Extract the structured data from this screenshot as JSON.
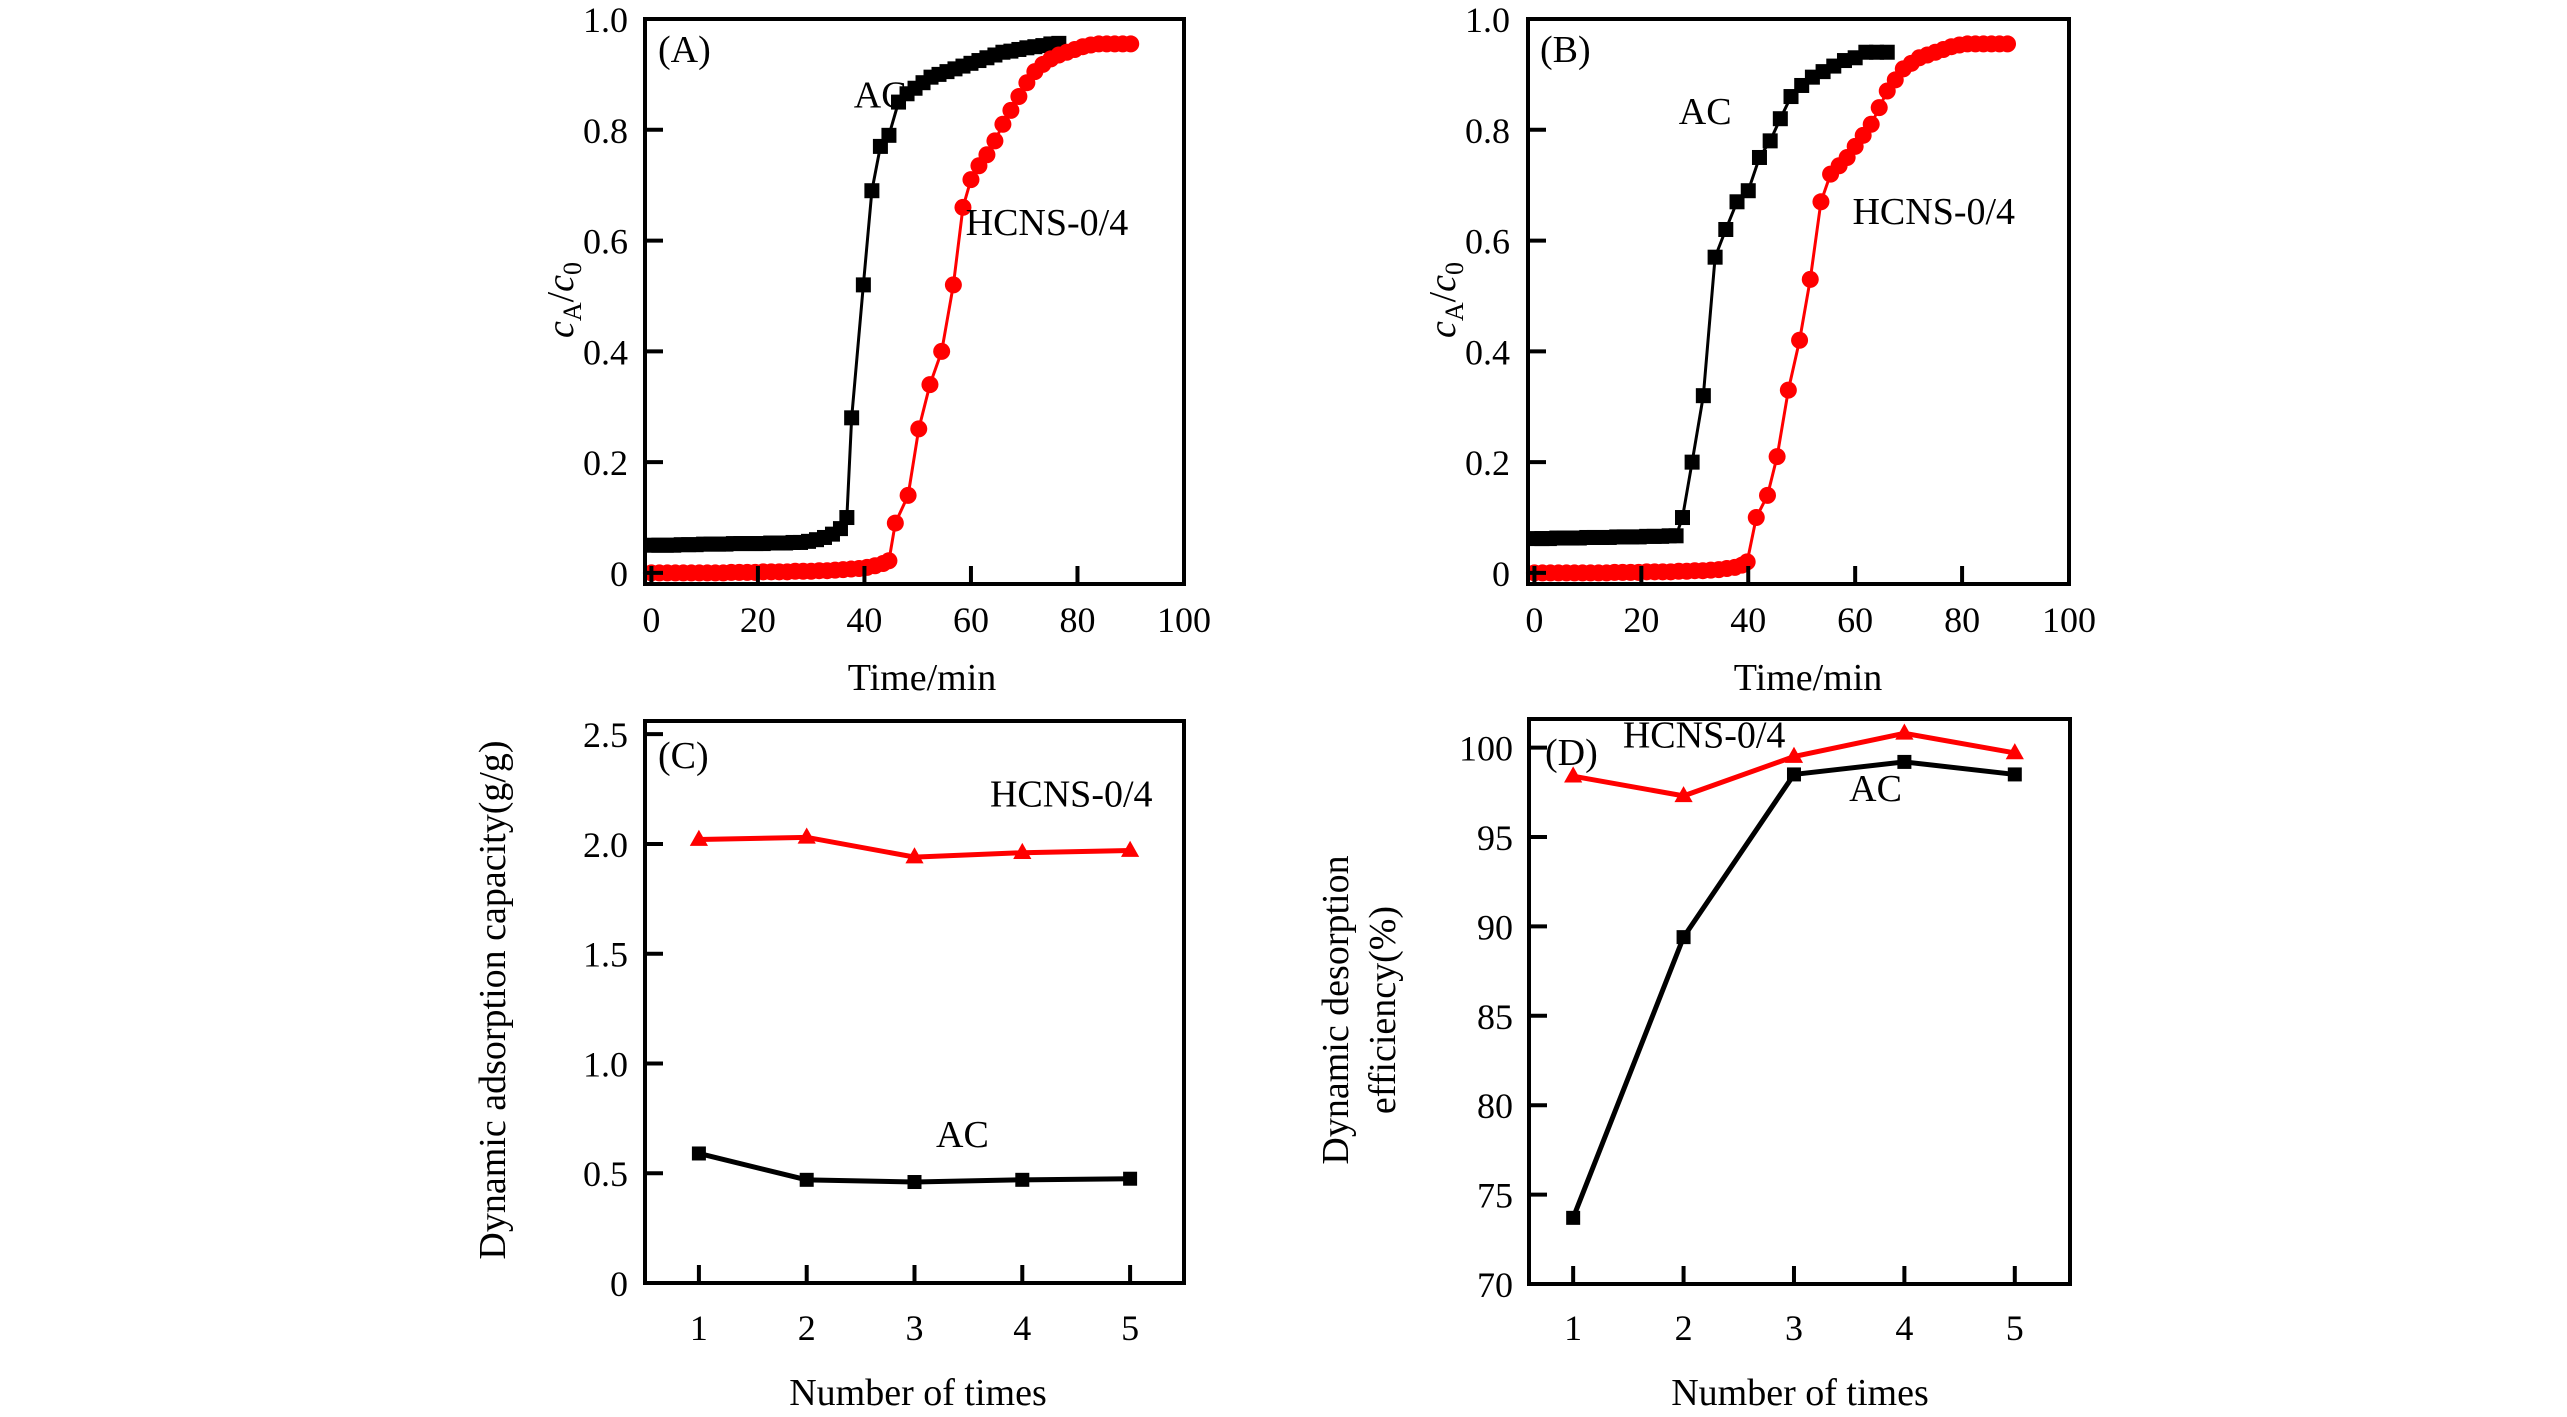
{
  "figure": {
    "colors": {
      "AC": "#000000",
      "HCNS-0/4": "#ff0000",
      "axis": "#000000"
    }
  },
  "chart_data": [
    {
      "id": "A",
      "panel_label": "(A)",
      "type": "line",
      "xlabel": "Time/min",
      "ylabel_main": "c",
      "ylabel_sub1": "A",
      "ylabel_slash": "/",
      "ylabel_main2": "c",
      "ylabel_sub2": "0",
      "xlim": [
        -1.2,
        100
      ],
      "ylim": [
        -0.02,
        1.0
      ],
      "xticks": [
        0,
        20,
        40,
        60,
        80,
        100
      ],
      "xtick_labels": [
        "0",
        "20",
        "40",
        "60",
        "80",
        "100"
      ],
      "yticks": [
        0,
        0.2,
        0.4,
        0.6,
        0.8,
        1.0
      ],
      "ytick_labels": [
        "0",
        "0.2",
        "0.4",
        "0.6",
        "0.8",
        "1.0"
      ],
      "grid": false,
      "annotations": [
        {
          "text": "AC",
          "x": 38,
          "y": 0.84
        },
        {
          "text": "HCNS-0/4",
          "x": 59,
          "y": 0.61
        }
      ],
      "series": [
        {
          "name": "AC",
          "marker": "square",
          "color": "#000000",
          "x": [
            0,
            1.4,
            2.8,
            4.2,
            5.6,
            7,
            8.4,
            9.8,
            11.2,
            12.6,
            14,
            15.4,
            16.8,
            18.2,
            19.6,
            21,
            22.4,
            23.8,
            25.2,
            26.6,
            28,
            29.5,
            31,
            32.5,
            34,
            35.5,
            36.7,
            37.6,
            39.8,
            41.4,
            43,
            44.6,
            46.4,
            48,
            49.5,
            51,
            52.5,
            54,
            55.5,
            57,
            58.5,
            60,
            61.5,
            63,
            64.5,
            66,
            67.5,
            69,
            70.5,
            72,
            73.5,
            75,
            76.5
          ],
          "y": [
            0.05,
            0.05,
            0.05,
            0.05,
            0.051,
            0.051,
            0.051,
            0.052,
            0.052,
            0.052,
            0.052,
            0.053,
            0.053,
            0.053,
            0.053,
            0.053,
            0.054,
            0.054,
            0.054,
            0.055,
            0.055,
            0.057,
            0.06,
            0.064,
            0.07,
            0.08,
            0.1,
            0.28,
            0.52,
            0.69,
            0.77,
            0.79,
            0.85,
            0.865,
            0.875,
            0.885,
            0.895,
            0.9,
            0.905,
            0.91,
            0.915,
            0.92,
            0.925,
            0.93,
            0.935,
            0.94,
            0.942,
            0.945,
            0.948,
            0.95,
            0.952,
            0.955,
            0.956
          ]
        },
        {
          "name": "HCNS-0/4",
          "marker": "circle",
          "color": "#ff0000",
          "x": [
            0,
            1.5,
            3,
            4.5,
            6,
            7.5,
            9,
            10.5,
            12,
            13.5,
            15,
            16.5,
            18,
            19.5,
            21,
            22.5,
            24,
            25.5,
            27,
            28.5,
            30,
            31.5,
            33,
            34.5,
            36,
            37.5,
            39,
            40.5,
            42,
            43.5,
            44.6,
            45.8,
            48.2,
            50.2,
            52.3,
            54.5,
            56.7,
            58.5,
            60,
            61.5,
            63,
            64.5,
            66,
            67.5,
            69,
            70.5,
            72,
            73.5,
            75,
            76.5,
            78,
            79.5,
            81,
            82.5,
            84,
            85.5,
            87,
            88.5,
            90
          ],
          "y": [
            0,
            0,
            0,
            0,
            0,
            0,
            0,
            0,
            0,
            0,
            0.001,
            0.001,
            0.001,
            0.001,
            0.002,
            0.002,
            0.002,
            0.002,
            0.003,
            0.003,
            0.003,
            0.004,
            0.004,
            0.005,
            0.006,
            0.007,
            0.008,
            0.01,
            0.013,
            0.017,
            0.022,
            0.09,
            0.14,
            0.26,
            0.34,
            0.4,
            0.52,
            0.66,
            0.71,
            0.735,
            0.755,
            0.78,
            0.81,
            0.835,
            0.86,
            0.885,
            0.905,
            0.918,
            0.928,
            0.935,
            0.94,
            0.945,
            0.95,
            0.953,
            0.955,
            0.955,
            0.955,
            0.955,
            0.955
          ]
        }
      ]
    },
    {
      "id": "B",
      "panel_label": "(B)",
      "type": "line",
      "xlabel": "Time/min",
      "ylabel_main": "c",
      "ylabel_sub1": "A",
      "ylabel_slash": "/",
      "ylabel_main2": "c",
      "ylabel_sub2": "0",
      "xlim": [
        -1.2,
        100
      ],
      "ylim": [
        -0.02,
        1.0
      ],
      "xticks": [
        0,
        20,
        40,
        60,
        80,
        100
      ],
      "xtick_labels": [
        "0",
        "20",
        "40",
        "60",
        "80",
        "100"
      ],
      "yticks": [
        0,
        0.2,
        0.4,
        0.6,
        0.8,
        1.0
      ],
      "ytick_labels": [
        "0",
        "0.2",
        "0.4",
        "0.6",
        "0.8",
        "1.0"
      ],
      "grid": false,
      "annotations": [
        {
          "text": "AC",
          "x": 27,
          "y": 0.81
        },
        {
          "text": "HCNS-0/4",
          "x": 59.5,
          "y": 0.63
        }
      ],
      "series": [
        {
          "name": "AC",
          "marker": "square",
          "color": "#000000",
          "x": [
            0,
            1.4,
            2.8,
            4.2,
            5.6,
            7,
            8.4,
            9.8,
            11.2,
            12.6,
            14,
            15.4,
            16.8,
            18.2,
            19.6,
            21,
            22.4,
            23.8,
            25.2,
            26.5,
            27.7,
            29.5,
            31.6,
            33.8,
            35.8,
            37.9,
            40,
            42.1,
            44.1,
            46,
            48,
            50,
            52,
            54,
            56,
            58,
            60,
            62,
            64,
            66
          ],
          "y": [
            0.062,
            0.062,
            0.062,
            0.063,
            0.063,
            0.063,
            0.063,
            0.064,
            0.064,
            0.064,
            0.064,
            0.065,
            0.065,
            0.065,
            0.065,
            0.066,
            0.066,
            0.066,
            0.067,
            0.067,
            0.1,
            0.2,
            0.32,
            0.57,
            0.62,
            0.67,
            0.69,
            0.75,
            0.78,
            0.82,
            0.86,
            0.88,
            0.895,
            0.905,
            0.915,
            0.925,
            0.93,
            0.94,
            0.94,
            0.94
          ]
        },
        {
          "name": "HCNS-0/4",
          "marker": "circle",
          "color": "#ff0000",
          "x": [
            0,
            1.5,
            3,
            4.5,
            6,
            7.5,
            9,
            10.5,
            12,
            13.5,
            15,
            16.5,
            18,
            19.5,
            21,
            22.5,
            24,
            25.5,
            27,
            28.5,
            30,
            31.5,
            33,
            34.5,
            36,
            37.5,
            38.8,
            39.8,
            41.5,
            43.6,
            45.4,
            47.5,
            49.6,
            51.6,
            53.6,
            55.4,
            57,
            58.5,
            60,
            61.5,
            63,
            64.5,
            66,
            67.5,
            69,
            70.5,
            72,
            73.5,
            75,
            76.5,
            78,
            79.5,
            81,
            82.5,
            84,
            85.5,
            87,
            88.5
          ],
          "y": [
            0,
            0,
            0,
            0,
            0,
            0,
            0,
            0,
            0,
            0,
            0.001,
            0.001,
            0.001,
            0.001,
            0.002,
            0.002,
            0.002,
            0.002,
            0.003,
            0.003,
            0.004,
            0.004,
            0.005,
            0.006,
            0.008,
            0.01,
            0.014,
            0.02,
            0.1,
            0.14,
            0.21,
            0.33,
            0.42,
            0.53,
            0.67,
            0.72,
            0.735,
            0.75,
            0.77,
            0.79,
            0.81,
            0.84,
            0.87,
            0.89,
            0.91,
            0.92,
            0.93,
            0.935,
            0.94,
            0.945,
            0.95,
            0.953,
            0.955,
            0.955,
            0.955,
            0.955,
            0.955,
            0.955
          ]
        }
      ]
    },
    {
      "id": "C",
      "panel_label": "(C)",
      "type": "line",
      "xlabel": "Number of times",
      "ylabel": "Dynamic adsorption capacity(g/g)",
      "xlim": [
        0.5,
        5.5
      ],
      "ylim": [
        0,
        2.56
      ],
      "xticks": [
        1,
        2,
        3,
        4,
        5
      ],
      "xtick_labels": [
        "1",
        "2",
        "3",
        "4",
        "5"
      ],
      "yticks": [
        0,
        0.5,
        1.0,
        1.5,
        2.0,
        2.5
      ],
      "ytick_labels": [
        "0",
        "0.5",
        "1.0",
        "1.5",
        "2.0",
        "2.5"
      ],
      "grid": false,
      "annotations": [
        {
          "text": "HCNS-0/4",
          "x": 3.7,
          "y": 2.17
        },
        {
          "text": "AC",
          "x": 3.2,
          "y": 0.62
        }
      ],
      "series": [
        {
          "name": "HCNS-0/4",
          "marker": "triangle",
          "color": "#ff0000",
          "x": [
            1,
            2,
            3,
            4,
            5
          ],
          "y": [
            2.02,
            2.03,
            1.94,
            1.96,
            1.97
          ]
        },
        {
          "name": "AC",
          "marker": "square",
          "color": "#000000",
          "x": [
            1,
            2,
            3,
            4,
            5
          ],
          "y": [
            0.59,
            0.47,
            0.46,
            0.47,
            0.475
          ]
        }
      ]
    },
    {
      "id": "D",
      "panel_label": "(D)",
      "type": "line",
      "xlabel": "Number of times",
      "ylabel_line1": "Dynamic desorption",
      "ylabel_line2": "efficiency(%)",
      "xlim": [
        0.6,
        5.5
      ],
      "ylim": [
        70,
        101.6
      ],
      "xticks": [
        1,
        2,
        3,
        4,
        5
      ],
      "xtick_labels": [
        "1",
        "2",
        "3",
        "4",
        "5"
      ],
      "yticks": [
        70,
        75,
        80,
        85,
        90,
        95,
        100
      ],
      "ytick_labels": [
        "70",
        "75",
        "80",
        "85",
        "90",
        "95",
        "100"
      ],
      "grid": false,
      "annotations": [
        {
          "text": "HCNS-0/4",
          "x": 1.45,
          "y": 100.0
        },
        {
          "text": "AC",
          "x": 3.5,
          "y": 97.0
        }
      ],
      "series": [
        {
          "name": "HCNS-0/4",
          "marker": "triangle",
          "color": "#ff0000",
          "x": [
            1,
            2,
            3,
            4,
            5
          ],
          "y": [
            98.4,
            97.3,
            99.5,
            100.8,
            99.7
          ]
        },
        {
          "name": "AC",
          "marker": "square",
          "color": "#000000",
          "x": [
            1,
            2,
            3,
            4,
            5
          ],
          "y": [
            73.7,
            89.4,
            98.5,
            99.2,
            98.5
          ]
        }
      ]
    }
  ]
}
